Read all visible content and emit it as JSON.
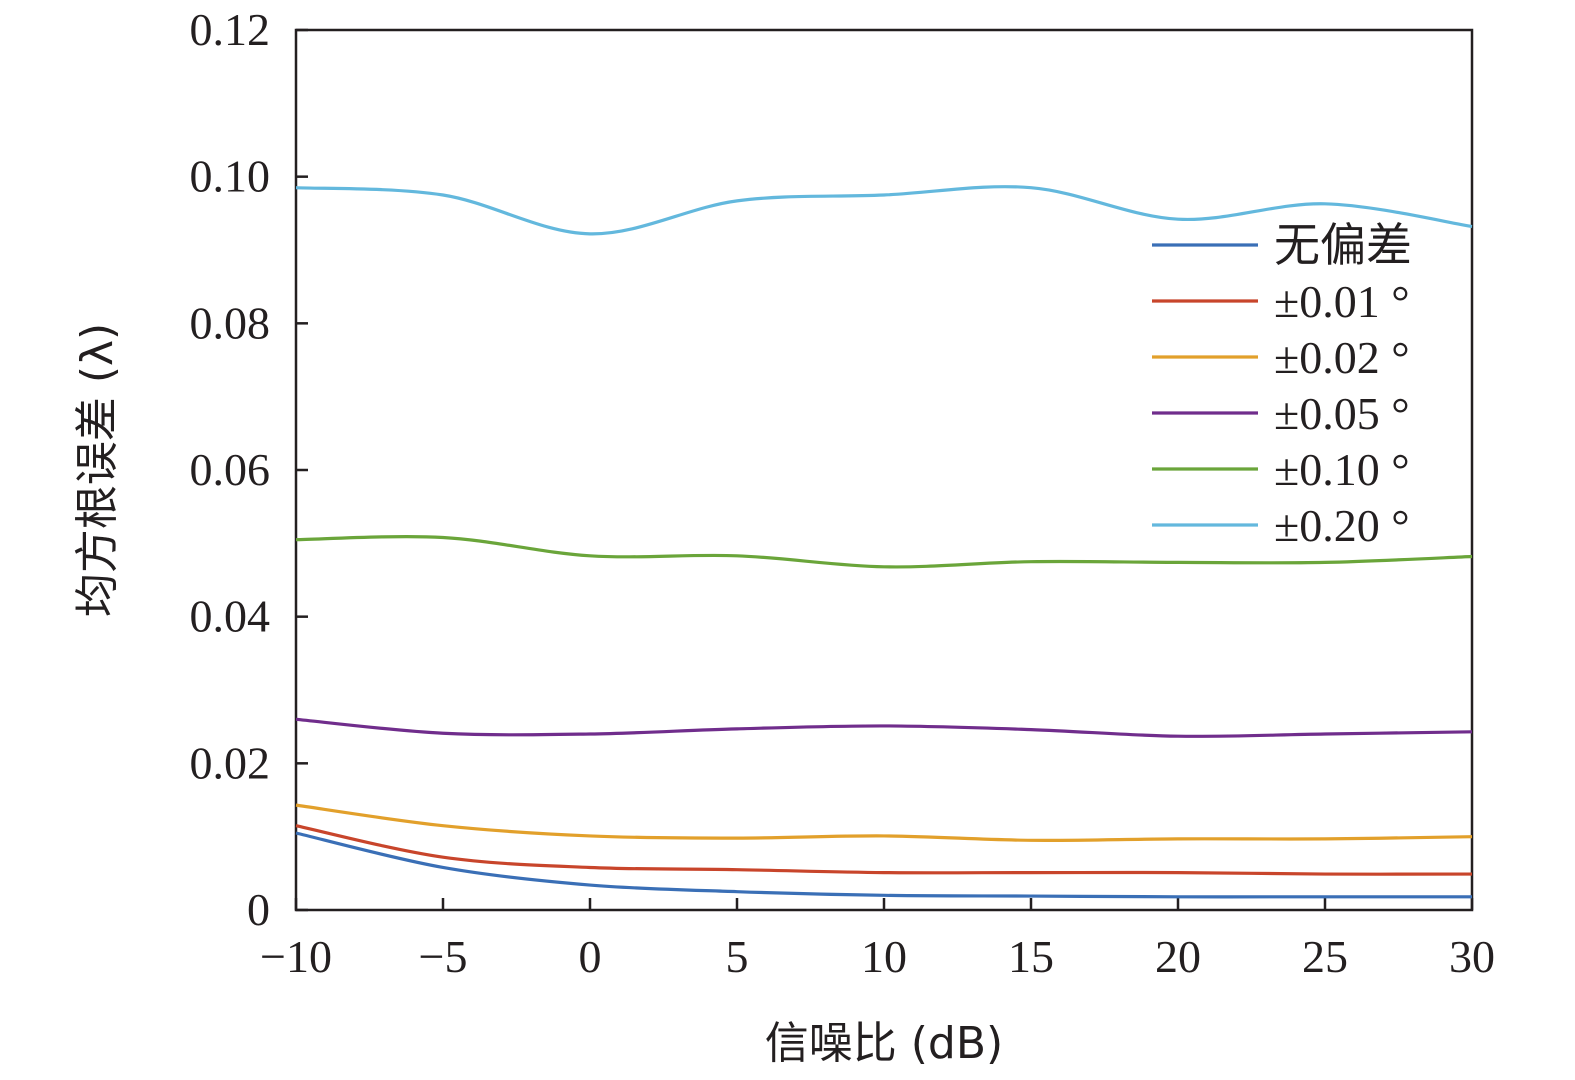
{
  "chart_data": {
    "type": "line",
    "xlabel": "信噪比 (dB)",
    "ylabel": "均方根误差 (λ)",
    "xlim": [
      -10,
      30
    ],
    "ylim": [
      0,
      0.12
    ],
    "x_ticks": [
      -10,
      -5,
      0,
      5,
      10,
      15,
      20,
      25,
      30
    ],
    "y_ticks": [
      0,
      0.02,
      0.04,
      0.06,
      0.08,
      0.1,
      0.12
    ],
    "x_tick_labels": [
      "−10",
      "−5",
      "0",
      "5",
      "10",
      "15",
      "20",
      "25",
      "30"
    ],
    "y_tick_labels": [
      "0",
      "0.02",
      "0.04",
      "0.06",
      "0.08",
      "0.10",
      "0.12"
    ],
    "grid": false,
    "legend_position": "top-right",
    "series": [
      {
        "name": "无偏差",
        "color": "#3a6fb6",
        "x": [
          -10,
          -5,
          0,
          5,
          10,
          15,
          20,
          25,
          30
        ],
        "y": [
          0.0105,
          0.0058,
          0.0034,
          0.0025,
          0.002,
          0.0019,
          0.0018,
          0.0018,
          0.0018
        ]
      },
      {
        "name": "±0.01 °",
        "color": "#c8452b",
        "x": [
          -10,
          -5,
          0,
          5,
          10,
          15,
          20,
          25,
          30
        ],
        "y": [
          0.0115,
          0.0072,
          0.0058,
          0.0055,
          0.0051,
          0.0051,
          0.0051,
          0.0049,
          0.0049
        ]
      },
      {
        "name": "±0.02 °",
        "color": "#e2a02b",
        "x": [
          -10,
          -5,
          0,
          5,
          10,
          15,
          20,
          25,
          30
        ],
        "y": [
          0.0143,
          0.0115,
          0.0101,
          0.0098,
          0.0101,
          0.0095,
          0.0097,
          0.0097,
          0.01
        ]
      },
      {
        "name": "±0.05 °",
        "color": "#702d8c",
        "x": [
          -10,
          -5,
          0,
          5,
          10,
          15,
          20,
          25,
          30
        ],
        "y": [
          0.026,
          0.0241,
          0.024,
          0.0247,
          0.0251,
          0.0246,
          0.0237,
          0.024,
          0.0243
        ]
      },
      {
        "name": "±0.10 °",
        "color": "#6aa53a",
        "x": [
          -10,
          -5,
          0,
          5,
          10,
          15,
          20,
          25,
          30
        ],
        "y": [
          0.0505,
          0.0508,
          0.0483,
          0.0483,
          0.0468,
          0.0475,
          0.0474,
          0.0474,
          0.0482
        ]
      },
      {
        "name": "±0.20 °",
        "color": "#63b8dd",
        "x": [
          -10,
          -5,
          0,
          5,
          10,
          15,
          20,
          25,
          30
        ],
        "y": [
          0.0985,
          0.0975,
          0.0922,
          0.0967,
          0.0975,
          0.0985,
          0.0942,
          0.0963,
          0.0932
        ]
      }
    ]
  }
}
